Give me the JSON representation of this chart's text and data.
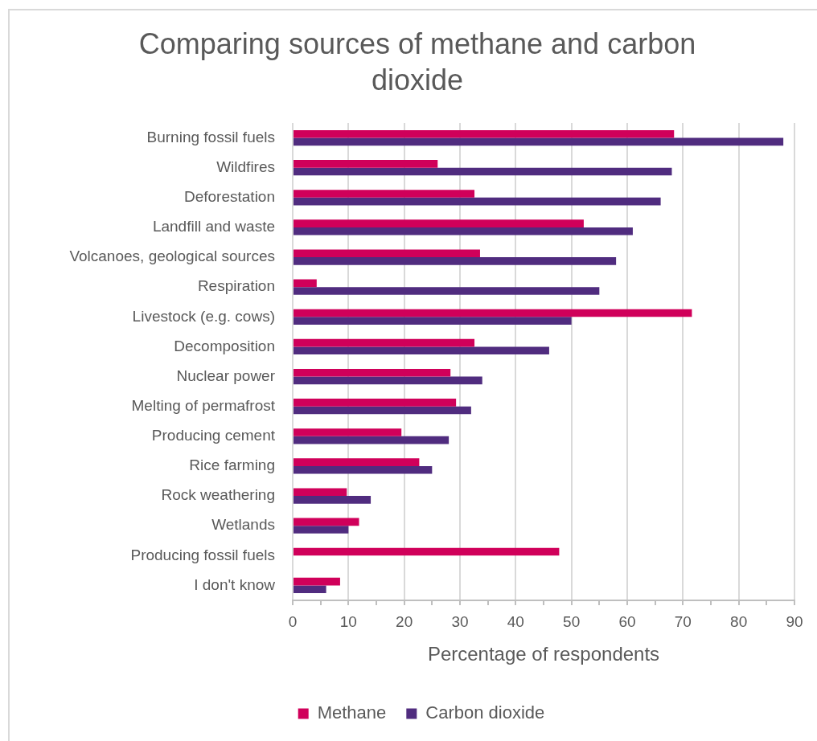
{
  "chart_data": {
    "type": "bar",
    "orientation": "horizontal",
    "title": "Comparing sources of methane and carbon dioxide",
    "xlabel": "Percentage of respondents",
    "categories": [
      "Burning fossil fuels",
      "Wildfires",
      "Deforestation",
      "Landfill and waste",
      "Volcanoes, geological sources",
      "Respiration",
      "Livestock (e.g. cows)",
      "Decomposition",
      "Nuclear power",
      "Melting of permafrost",
      "Producing cement",
      "Rice farming",
      "Rock weathering",
      "Wetlands",
      "Producing fossil fuels",
      "I don't know"
    ],
    "series": [
      {
        "name": "Methane",
        "color": "#d0005a",
        "values": [
          68.4,
          26,
          32.6,
          52.2,
          33.6,
          4.3,
          71.6,
          32.6,
          28.3,
          29.3,
          19.5,
          22.7,
          9.7,
          11.9,
          47.8,
          8.5
        ]
      },
      {
        "name": "Carbon dioxide",
        "color": "#502c7f",
        "values": [
          88,
          68,
          66,
          61,
          58,
          55,
          50,
          46,
          34,
          32,
          28,
          25,
          14,
          10,
          null,
          6
        ]
      }
    ],
    "xlim": [
      0,
      90
    ],
    "xticks": [
      0,
      {
        "value": 5,
        "label": null
      },
      10,
      {
        "value": 15,
        "label": null
      },
      20,
      {
        "value": 25,
        "label": null
      },
      30,
      {
        "value": 35,
        "label": null
      },
      40,
      {
        "value": 45,
        "label": null
      },
      50,
      {
        "value": 55,
        "label": null
      },
      60,
      {
        "value": 65,
        "label": null
      },
      70,
      {
        "value": 75,
        "label": null
      },
      80,
      {
        "value": 85,
        "label": null
      },
      90
    ],
    "grid": "x",
    "legend": "bottom"
  }
}
